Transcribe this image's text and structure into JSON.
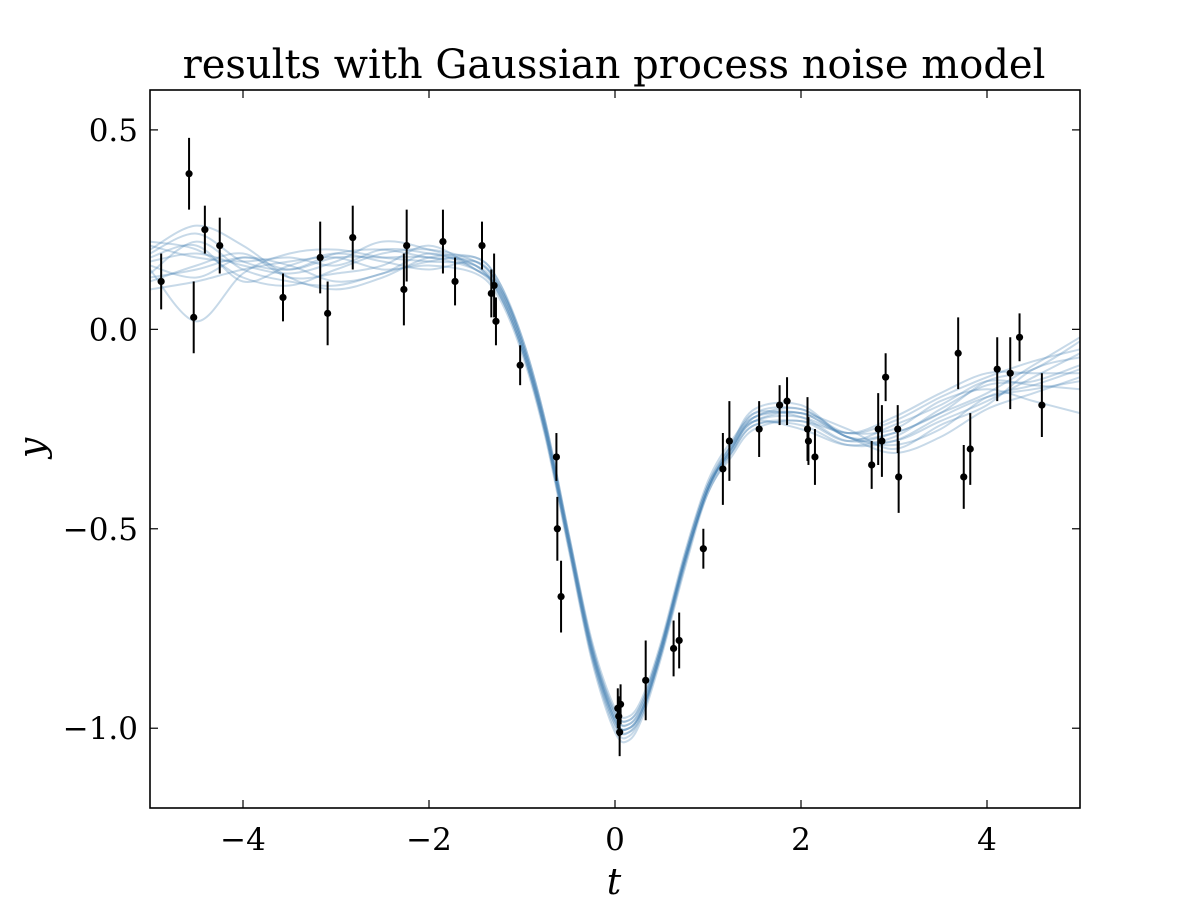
{
  "chart_data": {
    "type": "scatter",
    "title": "results with Gaussian process noise model",
    "xlabel": "t",
    "ylabel": "y",
    "xlim": [
      -5,
      5
    ],
    "ylim": [
      -1.2,
      0.6
    ],
    "x_ticks": [
      -4,
      -2,
      0,
      2,
      4
    ],
    "x_tick_labels": [
      "−4",
      "−2",
      "0",
      "2",
      "4"
    ],
    "y_ticks": [
      -1.0,
      -0.5,
      0.0,
      0.5
    ],
    "y_tick_labels": [
      "−1.0",
      "−0.5",
      "0.0",
      "0.5"
    ],
    "grid": false,
    "legend": "none",
    "colors": {
      "samples": "#4682b4",
      "points": "#000000"
    },
    "series": [
      {
        "kind": "errorbar",
        "x": [
          -4.88,
          -4.58,
          -4.53,
          -4.41,
          -4.25,
          -3.57,
          -3.17,
          -3.09,
          -2.82,
          -2.27,
          -2.24,
          -1.85,
          -1.72,
          -1.43,
          -1.33,
          -1.3,
          -1.28,
          -1.02,
          -0.63,
          -0.62,
          -0.58,
          0.03,
          0.04,
          0.05,
          0.06,
          0.33,
          0.63,
          0.69,
          0.95,
          1.16,
          1.23,
          1.55,
          1.77,
          1.85,
          2.07,
          2.08,
          2.15,
          2.76,
          2.83,
          2.87,
          2.91,
          3.04,
          3.05,
          3.69,
          3.75,
          3.82,
          4.11,
          4.25,
          4.35,
          4.59
        ],
        "y": [
          0.12,
          0.39,
          0.03,
          0.25,
          0.21,
          0.08,
          0.18,
          0.04,
          0.23,
          0.1,
          0.21,
          0.22,
          0.12,
          0.21,
          0.09,
          0.11,
          0.02,
          -0.09,
          -0.32,
          -0.5,
          -0.67,
          -0.95,
          -0.97,
          -1.01,
          -0.94,
          -0.88,
          -0.8,
          -0.78,
          -0.55,
          -0.35,
          -0.28,
          -0.25,
          -0.19,
          -0.18,
          -0.25,
          -0.28,
          -0.32,
          -0.34,
          -0.25,
          -0.28,
          -0.12,
          -0.25,
          -0.37,
          -0.06,
          -0.37,
          -0.3,
          -0.1,
          -0.11,
          -0.02,
          -0.19
        ],
        "err": [
          0.07,
          0.09,
          0.09,
          0.06,
          0.07,
          0.06,
          0.09,
          0.08,
          0.08,
          0.09,
          0.09,
          0.08,
          0.06,
          0.06,
          0.06,
          0.08,
          0.06,
          0.05,
          0.06,
          0.08,
          0.09,
          0.05,
          0.05,
          0.06,
          0.05,
          0.1,
          0.07,
          0.07,
          0.05,
          0.09,
          0.1,
          0.07,
          0.05,
          0.06,
          0.08,
          0.06,
          0.07,
          0.06,
          0.09,
          0.09,
          0.06,
          0.06,
          0.09,
          0.09,
          0.08,
          0.09,
          0.08,
          0.09,
          0.06,
          0.08
        ]
      },
      {
        "kind": "samples",
        "x": [
          -5,
          -4.5,
          -4,
          -3.5,
          -3,
          -2.5,
          -2,
          -1.5,
          -1.25,
          -1,
          -0.75,
          -0.5,
          -0.25,
          0,
          0.15,
          0.3,
          0.5,
          0.75,
          1,
          1.25,
          1.5,
          2,
          2.5,
          3,
          3.5,
          4,
          4.5,
          5
        ],
        "mean": [
          0.16,
          0.17,
          0.16,
          0.15,
          0.16,
          0.17,
          0.18,
          0.16,
          0.1,
          -0.04,
          -0.25,
          -0.53,
          -0.8,
          -0.97,
          -0.99,
          -0.94,
          -0.8,
          -0.58,
          -0.4,
          -0.3,
          -0.23,
          -0.22,
          -0.27,
          -0.25,
          -0.2,
          -0.15,
          -0.12,
          -0.1
        ],
        "samples": [
          [
            0.19,
            0.24,
            0.17,
            0.15,
            0.19,
            0.2,
            0.18,
            0.17,
            0.11,
            -0.03,
            -0.24,
            -0.52,
            -0.8,
            -0.98,
            -1.0,
            -0.95,
            -0.81,
            -0.59,
            -0.4,
            -0.3,
            -0.21,
            -0.2,
            -0.26,
            -0.23,
            -0.17,
            -0.12,
            -0.08,
            -0.05
          ],
          [
            0.13,
            0.15,
            0.18,
            0.16,
            0.12,
            0.14,
            0.19,
            0.15,
            0.09,
            -0.05,
            -0.26,
            -0.54,
            -0.82,
            -0.99,
            -1.01,
            -0.96,
            -0.8,
            -0.57,
            -0.39,
            -0.31,
            -0.24,
            -0.24,
            -0.29,
            -0.28,
            -0.22,
            -0.17,
            -0.15,
            -0.13
          ],
          [
            0.22,
            0.2,
            0.13,
            0.11,
            0.15,
            0.19,
            0.2,
            0.17,
            0.11,
            -0.02,
            -0.23,
            -0.51,
            -0.78,
            -0.95,
            -0.97,
            -0.92,
            -0.78,
            -0.56,
            -0.38,
            -0.28,
            -0.22,
            -0.21,
            -0.25,
            -0.3,
            -0.24,
            -0.19,
            -0.1,
            -0.07
          ],
          [
            0.1,
            0.12,
            0.15,
            0.17,
            0.18,
            0.15,
            0.16,
            0.14,
            0.08,
            -0.06,
            -0.27,
            -0.55,
            -0.83,
            -1.01,
            -1.03,
            -0.97,
            -0.82,
            -0.6,
            -0.41,
            -0.32,
            -0.25,
            -0.23,
            -0.28,
            -0.24,
            -0.19,
            -0.13,
            -0.14,
            -0.15
          ],
          [
            0.2,
            0.26,
            0.21,
            0.13,
            0.1,
            0.13,
            0.18,
            0.18,
            0.12,
            -0.03,
            -0.24,
            -0.52,
            -0.79,
            -0.96,
            -0.98,
            -0.93,
            -0.79,
            -0.58,
            -0.4,
            -0.29,
            -0.2,
            -0.19,
            -0.27,
            -0.26,
            -0.21,
            -0.16,
            -0.09,
            -0.02
          ],
          [
            0.15,
            0.02,
            0.14,
            0.19,
            0.2,
            0.18,
            0.17,
            0.16,
            0.1,
            -0.04,
            -0.25,
            -0.53,
            -0.81,
            -0.98,
            -1.0,
            -0.95,
            -0.8,
            -0.58,
            -0.4,
            -0.3,
            -0.23,
            -0.22,
            -0.27,
            -0.31,
            -0.27,
            -0.2,
            -0.16,
            -0.12
          ],
          [
            0.17,
            0.19,
            0.16,
            0.14,
            0.17,
            0.22,
            0.2,
            0.16,
            0.09,
            -0.05,
            -0.26,
            -0.54,
            -0.81,
            -0.97,
            -0.99,
            -0.94,
            -0.8,
            -0.58,
            -0.41,
            -0.31,
            -0.22,
            -0.21,
            -0.26,
            -0.22,
            -0.16,
            -0.11,
            -0.11,
            -0.11
          ],
          [
            0.12,
            0.16,
            0.19,
            0.13,
            0.14,
            0.16,
            0.21,
            0.15,
            0.1,
            -0.04,
            -0.25,
            -0.53,
            -0.8,
            -0.96,
            -0.98,
            -0.93,
            -0.79,
            -0.57,
            -0.39,
            -0.29,
            -0.23,
            -0.25,
            -0.29,
            -0.27,
            -0.2,
            -0.14,
            -0.13,
            -0.09
          ],
          [
            0.18,
            0.21,
            0.12,
            0.16,
            0.19,
            0.17,
            0.15,
            0.17,
            0.11,
            -0.03,
            -0.24,
            -0.52,
            -0.8,
            -0.98,
            -1.0,
            -0.95,
            -0.81,
            -0.59,
            -0.4,
            -0.3,
            -0.22,
            -0.2,
            -0.27,
            -0.28,
            -0.23,
            -0.18,
            -0.12,
            -0.06
          ],
          [
            0.21,
            0.18,
            0.17,
            0.18,
            0.16,
            0.2,
            0.19,
            0.16,
            0.09,
            -0.05,
            -0.26,
            -0.54,
            -0.82,
            -1.0,
            -1.02,
            -0.96,
            -0.81,
            -0.58,
            -0.4,
            -0.31,
            -0.24,
            -0.23,
            -0.26,
            -0.25,
            -0.18,
            -0.15,
            -0.18,
            -0.21
          ],
          [
            0.14,
            0.22,
            0.15,
            0.12,
            0.11,
            0.14,
            0.17,
            0.18,
            0.12,
            -0.02,
            -0.23,
            -0.51,
            -0.79,
            -0.97,
            -0.99,
            -0.94,
            -0.79,
            -0.57,
            -0.39,
            -0.29,
            -0.21,
            -0.22,
            -0.28,
            -0.26,
            -0.21,
            -0.13,
            -0.1,
            -0.03
          ],
          [
            0.16,
            0.13,
            0.18,
            0.15,
            0.18,
            0.18,
            0.18,
            0.15,
            0.1,
            -0.04,
            -0.25,
            -0.53,
            -0.81,
            -0.99,
            -1.01,
            -0.95,
            -0.8,
            -0.58,
            -0.4,
            -0.3,
            -0.23,
            -0.21,
            -0.27,
            -0.29,
            -0.25,
            -0.17,
            -0.14,
            -0.1
          ]
        ]
      }
    ]
  }
}
